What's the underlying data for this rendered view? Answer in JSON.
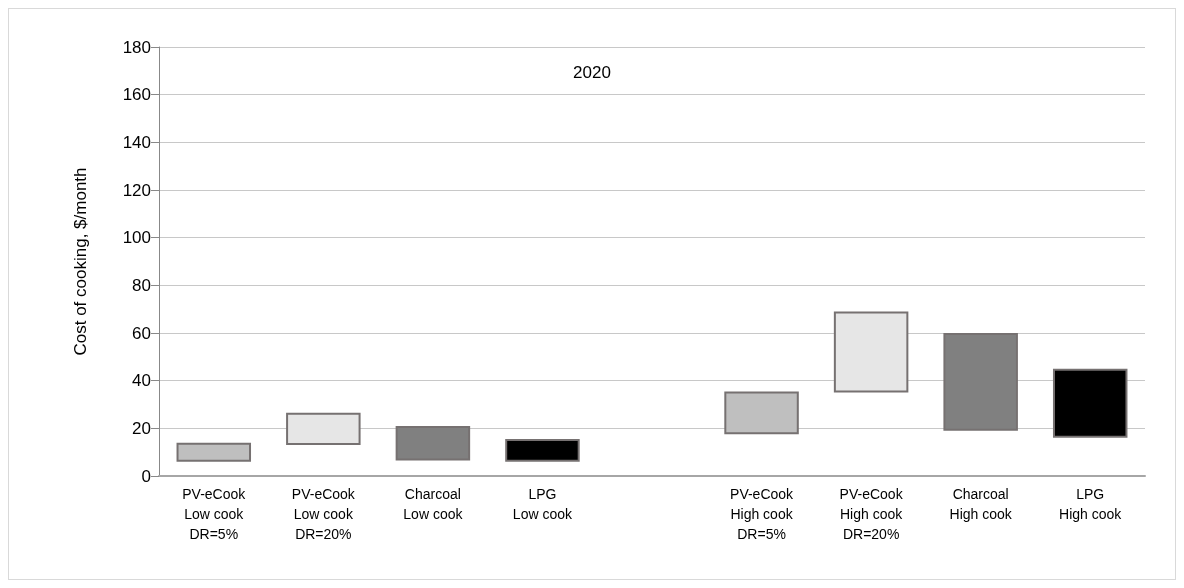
{
  "chart_data": {
    "type": "bar",
    "title": "2020",
    "ylabel": "Cost of cooking, $/month",
    "categories": [
      "PV-eCook\nLow cook\nDR=5%",
      "PV-eCook\nLow cook\nDR=20%",
      "Charcoal\nLow cook",
      "LPG\nLow cook",
      null,
      "PV-eCook\nHigh cook\nDR=5%",
      "PV-eCook\nHigh cook\nDR=20%",
      "Charcoal\nHigh cook",
      "LPG\nHigh cook"
    ],
    "base": [
      6,
      13,
      6.5,
      6,
      null,
      17.5,
      35,
      19,
      16
    ],
    "values": [
      8,
      13.5,
      14.5,
      9.5,
      null,
      18,
      34,
      41,
      29
    ],
    "colors": [
      "#bfbfbf",
      "#e6e6e6",
      "#808080",
      "#000000",
      null,
      "#bfbfbf",
      "#e6e6e6",
      "#808080",
      "#000000"
    ],
    "ylim": [
      0,
      180
    ],
    "yticks": [
      0,
      20,
      40,
      60,
      80,
      100,
      120,
      140,
      160,
      180
    ],
    "grid": "y"
  }
}
